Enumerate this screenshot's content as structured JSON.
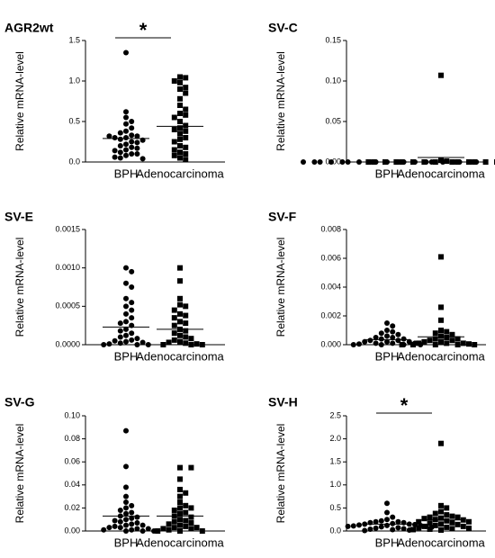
{
  "chart_data": [
    {
      "type": "scatter",
      "title": "AGR2wt",
      "y_label": "Relative  mRNA-level",
      "categories": [
        "BPH",
        "Adenocarcinoma"
      ],
      "annotation": "*",
      "ylim": [
        0,
        1.5
      ],
      "yticks": [
        {
          "value": 0,
          "label": "0.0"
        },
        0.5,
        {
          "value": 1,
          "label": "1.0"
        },
        1.5
      ],
      "series": [
        {
          "marker": "circle",
          "color": "#000000",
          "mean": 0.29,
          "values": [
            1.35,
            0.62,
            0.55,
            0.5,
            0.47,
            0.42,
            0.38,
            0.36,
            0.33,
            0.32,
            0.3,
            0.3,
            0.28,
            0.27,
            0.25,
            0.24,
            0.22,
            0.2,
            0.18,
            0.17,
            0.15,
            0.14,
            0.12,
            0.1,
            0.1,
            0.08,
            0.06,
            0.05,
            0.04,
            0.32
          ]
        },
        {
          "marker": "square",
          "color": "#000000",
          "mean": 0.44,
          "values": [
            1.05,
            1.04,
            1.0,
            0.98,
            0.92,
            0.9,
            0.85,
            0.78,
            0.7,
            0.65,
            0.6,
            0.58,
            0.55,
            0.5,
            0.45,
            0.42,
            0.4,
            0.38,
            0.35,
            0.3,
            0.28,
            0.25,
            0.2,
            0.18,
            0.15,
            0.12,
            0.1,
            0.08,
            0.05,
            0.03
          ]
        }
      ]
    },
    {
      "type": "scatter",
      "title": "SV-C",
      "y_label": "Relative  mRNA-level",
      "categories": [
        "BPH",
        "Adenocarcinoma"
      ],
      "ylim": [
        0,
        0.15
      ],
      "yticks": [
        {
          "value": 0,
          "label": "0.00"
        },
        {
          "value": 0.05,
          "label": "0.05"
        },
        {
          "value": 0.1,
          "label": "0.10"
        },
        {
          "value": 0.15,
          "label": "0.15"
        }
      ],
      "series": [
        {
          "marker": "circle",
          "color": "#000000",
          "mean": 0,
          "values": [
            0,
            0,
            0,
            0,
            0,
            0,
            0,
            0,
            0,
            0,
            0,
            0,
            0,
            0,
            0,
            0,
            0,
            0,
            0,
            0
          ]
        },
        {
          "marker": "square",
          "color": "#000000",
          "mean": 0.0055,
          "values": [
            0.107,
            0.002,
            0.001,
            0,
            0,
            0,
            0,
            0,
            0,
            0,
            0,
            0,
            0,
            0,
            0,
            0,
            0,
            0,
            0,
            0
          ]
        }
      ]
    },
    {
      "type": "scatter",
      "title": "SV-E",
      "y_label": "Relative  mRNA-level",
      "categories": [
        "BPH",
        "Adenocarcinoma"
      ],
      "ylim": [
        0,
        0.0015
      ],
      "yticks": [
        {
          "value": 0,
          "label": "0.0000"
        },
        {
          "value": 0.0005,
          "label": "0.0005"
        },
        {
          "value": 0.001,
          "label": "0.0010"
        },
        {
          "value": 0.0015,
          "label": "0.0015"
        }
      ],
      "series": [
        {
          "marker": "circle",
          "color": "#000000",
          "mean": 0.00023,
          "values": [
            0.001,
            0.00095,
            0.0008,
            0.00075,
            0.0006,
            0.00055,
            0.0005,
            0.00045,
            0.0004,
            0.00035,
            0.0003,
            0.00028,
            0.00025,
            0.0002,
            0.00018,
            0.00015,
            0.00012,
            0.0001,
            8e-05,
            6e-05,
            5e-05,
            4e-05,
            3e-05,
            2e-05,
            1e-05,
            0,
            0,
            0
          ]
        },
        {
          "marker": "square",
          "color": "#000000",
          "mean": 0.0002,
          "values": [
            0.001,
            0.00083,
            0.0006,
            0.00052,
            0.0005,
            0.00045,
            0.0004,
            0.00038,
            0.00035,
            0.0003,
            0.00028,
            0.00025,
            0.0002,
            0.00018,
            0.00015,
            0.00012,
            0.0001,
            8e-05,
            6e-05,
            4e-05,
            3e-05,
            2e-05,
            1e-05,
            0,
            0,
            0
          ]
        }
      ]
    },
    {
      "type": "scatter",
      "title": "SV-F",
      "y_label": "Relative  mRNA-level",
      "categories": [
        "BPH",
        "Adenocarcinoma"
      ],
      "ylim": [
        0,
        0.008
      ],
      "yticks": [
        {
          "value": 0,
          "label": "0.000"
        },
        {
          "value": 0.002,
          "label": "0.002"
        },
        {
          "value": 0.004,
          "label": "0.004"
        },
        {
          "value": 0.006,
          "label": "0.006"
        },
        {
          "value": 0.008,
          "label": "0.008"
        }
      ],
      "series": [
        {
          "marker": "circle",
          "color": "#000000",
          "mean": 0.00035,
          "values": [
            0.0015,
            0.0013,
            0.001,
            0.0009,
            0.0008,
            0.0007,
            0.0006,
            0.0005,
            0.0005,
            0.0004,
            0.0004,
            0.0003,
            0.0003,
            0.0002,
            0.0002,
            0.0002,
            0.0001,
            0.0001,
            0.0001,
            5e-05,
            0,
            0,
            0,
            0
          ]
        },
        {
          "marker": "square",
          "color": "#000000",
          "mean": 0.00055,
          "values": [
            0.0061,
            0.0026,
            0.0017,
            0.001,
            0.0009,
            0.0008,
            0.0007,
            0.0006,
            0.0005,
            0.0004,
            0.0004,
            0.0003,
            0.0003,
            0.0002,
            0.0002,
            0.0001,
            0.0001,
            0.0001,
            5e-05,
            0,
            0,
            0,
            0,
            0
          ]
        }
      ]
    },
    {
      "type": "scatter",
      "title": "SV-G",
      "y_label": "Relative  mRNA-level",
      "categories": [
        "BPH",
        "Adenocarcinoma"
      ],
      "ylim": [
        0,
        0.1
      ],
      "yticks": [
        {
          "value": 0,
          "label": "0.00"
        },
        {
          "value": 0.02,
          "label": "0.02"
        },
        {
          "value": 0.04,
          "label": "0.04"
        },
        {
          "value": 0.06,
          "label": "0.06"
        },
        {
          "value": 0.08,
          "label": "0.08"
        },
        {
          "value": 0.1,
          "label": "0.10"
        }
      ],
      "series": [
        {
          "marker": "circle",
          "color": "#000000",
          "mean": 0.013,
          "values": [
            0.087,
            0.056,
            0.038,
            0.03,
            0.025,
            0.022,
            0.02,
            0.018,
            0.016,
            0.015,
            0.013,
            0.012,
            0.011,
            0.01,
            0.009,
            0.008,
            0.007,
            0.006,
            0.005,
            0.005,
            0.004,
            0.003,
            0.003,
            0.002,
            0.002,
            0.001,
            0.001,
            0,
            0,
            0
          ]
        },
        {
          "marker": "square",
          "color": "#000000",
          "mean": 0.013,
          "values": [
            0.055,
            0.055,
            0.045,
            0.036,
            0.033,
            0.03,
            0.025,
            0.022,
            0.02,
            0.02,
            0.018,
            0.016,
            0.015,
            0.013,
            0.012,
            0.01,
            0.009,
            0.008,
            0.007,
            0.006,
            0.005,
            0.004,
            0.003,
            0.003,
            0.002,
            0.002,
            0.001,
            0,
            0,
            0
          ]
        }
      ]
    },
    {
      "type": "scatter",
      "title": "SV-H",
      "y_label": "Relative  mRNA-level",
      "categories": [
        "BPH",
        "Adenocarcinoma"
      ],
      "annotation": "*",
      "ylim": [
        0,
        2.5
      ],
      "yticks": [
        {
          "value": 0,
          "label": "0.0"
        },
        0.5,
        {
          "value": 1,
          "label": "1.0"
        },
        1.5,
        {
          "value": 2,
          "label": "2.0"
        },
        2.5
      ],
      "series": [
        {
          "marker": "circle",
          "color": "#000000",
          "mean": 0.15,
          "values": [
            0.6,
            0.4,
            0.3,
            0.25,
            0.22,
            0.2,
            0.2,
            0.18,
            0.18,
            0.16,
            0.15,
            0.15,
            0.14,
            0.13,
            0.12,
            0.12,
            0.11,
            0.1,
            0.1,
            0.09,
            0.08,
            0.07,
            0.06,
            0.05,
            0.04,
            0.03,
            0.02,
            0.01
          ]
        },
        {
          "marker": "square",
          "color": "#000000",
          "mean": 0.24,
          "values": [
            1.9,
            0.55,
            0.5,
            0.42,
            0.38,
            0.35,
            0.32,
            0.3,
            0.3,
            0.28,
            0.27,
            0.25,
            0.24,
            0.22,
            0.2,
            0.2,
            0.18,
            0.17,
            0.15,
            0.14,
            0.12,
            0.1,
            0.1,
            0.08,
            0.07,
            0.06,
            0.05,
            0.04,
            0.03,
            0.02
          ]
        }
      ]
    }
  ]
}
